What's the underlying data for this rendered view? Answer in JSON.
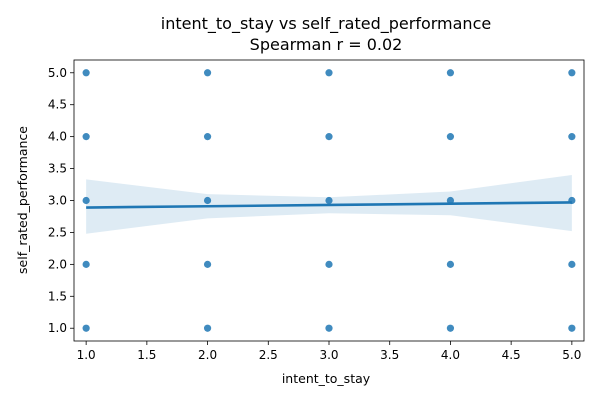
{
  "chart_data": {
    "type": "scatter",
    "title": "intent_to_stay vs self_rated_performance",
    "subtitle": "Spearman r = 0.02",
    "xlabel": "intent_to_stay",
    "ylabel": "self_rated_performance",
    "xlim": [
      0.9,
      5.1
    ],
    "ylim": [
      0.8,
      5.2
    ],
    "xticks": [
      "1.0",
      "1.5",
      "2.0",
      "2.5",
      "3.0",
      "3.5",
      "4.0",
      "4.5",
      "5.0"
    ],
    "yticks": [
      "1.0",
      "1.5",
      "2.0",
      "2.5",
      "3.0",
      "3.5",
      "4.0",
      "4.5",
      "5.0"
    ],
    "grid": false,
    "point_color": "#1f77b4",
    "points": [
      {
        "x": 1,
        "y": 1
      },
      {
        "x": 1,
        "y": 2
      },
      {
        "x": 1,
        "y": 3
      },
      {
        "x": 1,
        "y": 4
      },
      {
        "x": 1,
        "y": 5
      },
      {
        "x": 2,
        "y": 1
      },
      {
        "x": 2,
        "y": 2
      },
      {
        "x": 2,
        "y": 3
      },
      {
        "x": 2,
        "y": 4
      },
      {
        "x": 2,
        "y": 5
      },
      {
        "x": 3,
        "y": 1
      },
      {
        "x": 3,
        "y": 2
      },
      {
        "x": 3,
        "y": 3
      },
      {
        "x": 3,
        "y": 4
      },
      {
        "x": 3,
        "y": 5
      },
      {
        "x": 4,
        "y": 1
      },
      {
        "x": 4,
        "y": 2
      },
      {
        "x": 4,
        "y": 3
      },
      {
        "x": 4,
        "y": 4
      },
      {
        "x": 4,
        "y": 5
      },
      {
        "x": 5,
        "y": 1
      },
      {
        "x": 5,
        "y": 2
      },
      {
        "x": 5,
        "y": 3
      },
      {
        "x": 5,
        "y": 4
      },
      {
        "x": 5,
        "y": 5
      }
    ],
    "regression": {
      "x": [
        1,
        2,
        3,
        4,
        5
      ],
      "y": [
        2.89,
        2.91,
        2.93,
        2.95,
        2.97
      ],
      "ci_upper": [
        3.33,
        3.1,
        3.05,
        3.14,
        3.4
      ],
      "ci_lower": [
        2.48,
        2.72,
        2.8,
        2.77,
        2.52
      ]
    }
  }
}
